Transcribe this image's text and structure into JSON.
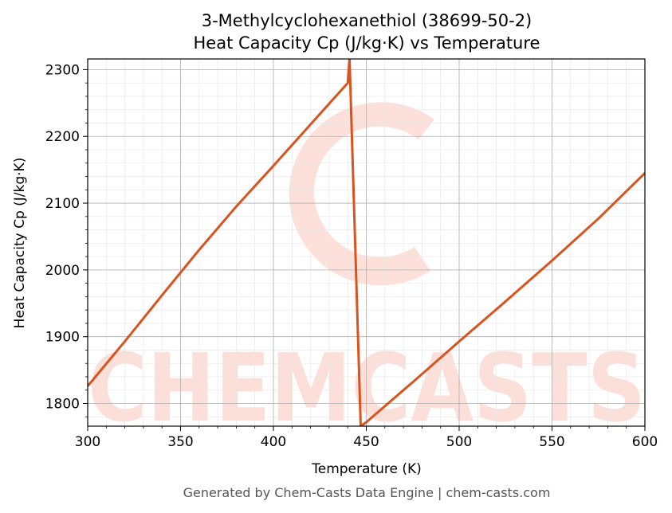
{
  "chart_data": {
    "type": "line",
    "title": "3-Methylcyclohexanethiol (38699-50-2)",
    "subtitle": "Heat Capacity Cp (J/kg·K) vs Temperature",
    "xlabel": "Temperature (K)",
    "ylabel": "Heat Capacity Cp (J/kg·K)",
    "xlim": [
      300,
      600
    ],
    "ylim": [
      1766,
      2316
    ],
    "x_ticks": [
      300,
      350,
      400,
      450,
      500,
      550,
      600
    ],
    "y_ticks": [
      1800,
      1900,
      2000,
      2100,
      2200,
      2300
    ],
    "grid": true,
    "series": [
      {
        "color": "#d9531e",
        "points": [
          [
            300,
            1826
          ],
          [
            320,
            1893
          ],
          [
            340,
            1962
          ],
          [
            360,
            2030
          ],
          [
            380,
            2095
          ],
          [
            400,
            2156
          ],
          [
            420,
            2218
          ],
          [
            440,
            2280
          ],
          [
            441,
            2316
          ],
          [
            447,
            1766
          ],
          [
            450,
            1772
          ],
          [
            475,
            1832
          ],
          [
            500,
            1893
          ],
          [
            525,
            1953
          ],
          [
            550,
            2014
          ],
          [
            575,
            2077
          ],
          [
            600,
            2145
          ]
        ]
      }
    ],
    "footer": "Generated by Chem-Casts Data Engine | chem-casts.com",
    "watermark": "CHEMCASTS",
    "watermark_color": "#fbd5cc"
  }
}
